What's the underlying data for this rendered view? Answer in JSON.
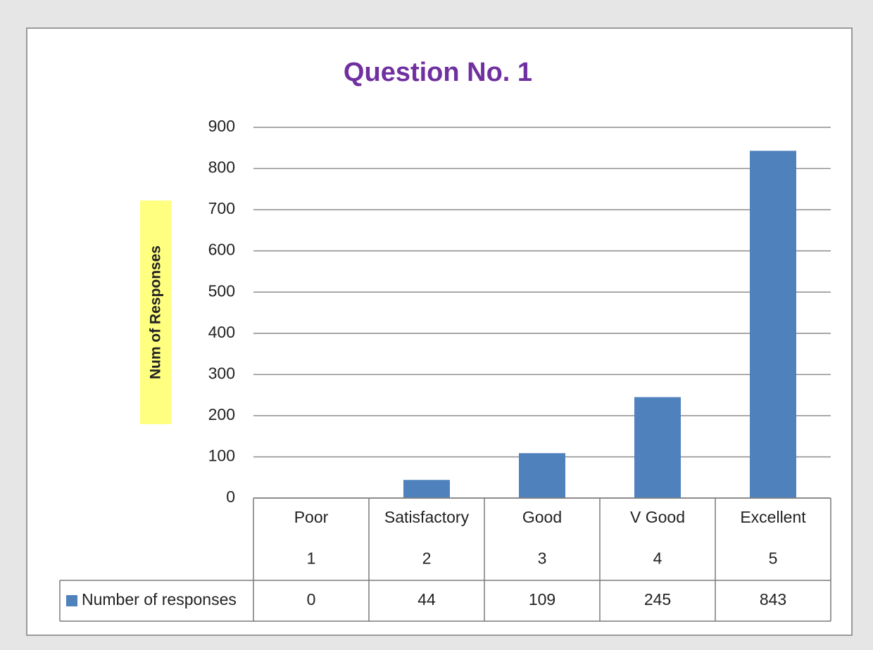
{
  "chart_data": {
    "type": "bar",
    "title": "Question No. 1",
    "y_label": "Num of Responses",
    "categories": [
      "Poor",
      "Satisfactory",
      "Good",
      "V Good",
      "Excellent"
    ],
    "category_codes": [
      1,
      2,
      3,
      4,
      5
    ],
    "series": [
      {
        "name": "Number of responses",
        "color": "#4f81bd",
        "values": [
          0,
          44,
          109,
          245,
          843
        ]
      }
    ],
    "ylim": [
      0,
      900
    ],
    "yticks": [
      0,
      100,
      200,
      300,
      400,
      500,
      600,
      700,
      800,
      900
    ],
    "grid": true
  }
}
